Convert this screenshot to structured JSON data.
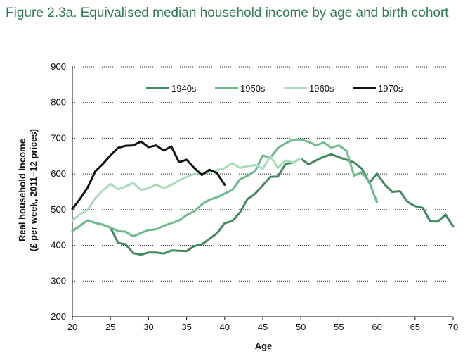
{
  "chart_data": {
    "type": "line",
    "title": "Figure 2.3a. Equivalised median household income by age and birth cohort",
    "xlabel": "Age",
    "ylabel_line1": "Real household income",
    "ylabel_line2": "(£ per week, 2011–12 prices)",
    "xlim": [
      20,
      70
    ],
    "ylim": [
      200,
      900
    ],
    "xticks": [
      20,
      25,
      30,
      35,
      40,
      45,
      50,
      55,
      60,
      65,
      70
    ],
    "yticks": [
      200,
      300,
      400,
      500,
      600,
      700,
      800,
      900
    ],
    "grid": "horizontal dotted",
    "legend_position": "top",
    "series": [
      {
        "name": "1940s",
        "color": "#3f8a5c",
        "x": [
          20,
          21,
          22,
          23,
          24,
          25,
          26,
          27,
          28,
          29,
          30,
          31,
          32,
          33,
          34,
          35,
          36,
          37,
          38,
          39,
          40,
          41,
          42,
          43,
          44,
          45,
          46,
          47,
          48,
          49,
          50,
          51,
          52,
          53,
          54,
          55,
          56,
          57,
          58,
          59,
          60,
          61,
          62,
          63,
          64,
          65,
          66,
          67,
          68,
          69,
          70
        ],
        "y": [
          440,
          455,
          470,
          463,
          458,
          450,
          407,
          403,
          378,
          374,
          380,
          380,
          377,
          386,
          385,
          384,
          398,
          403,
          418,
          434,
          462,
          468,
          492,
          530,
          545,
          568,
          592,
          593,
          628,
          632,
          643,
          627,
          638,
          648,
          655,
          647,
          640,
          632,
          615,
          575,
          601,
          571,
          550,
          552,
          522,
          510,
          505,
          467,
          467,
          486,
          453
        ]
      },
      {
        "name": "1950s",
        "color": "#6dbb8a",
        "x": [
          20,
          21,
          22,
          23,
          24,
          25,
          26,
          27,
          28,
          29,
          30,
          31,
          32,
          33,
          34,
          35,
          36,
          37,
          38,
          39,
          40,
          41,
          42,
          43,
          44,
          45,
          46,
          47,
          48,
          49,
          50,
          51,
          52,
          53,
          54,
          55,
          56,
          57,
          58,
          59,
          60
        ],
        "y": [
          440,
          455,
          470,
          463,
          458,
          450,
          440,
          438,
          425,
          435,
          443,
          445,
          455,
          462,
          470,
          485,
          495,
          515,
          528,
          535,
          545,
          555,
          585,
          595,
          608,
          652,
          645,
          673,
          686,
          696,
          697,
          690,
          680,
          688,
          674,
          680,
          665,
          595,
          605,
          577,
          520
        ]
      },
      {
        "name": "1960s",
        "color": "#a9dcb9",
        "x": [
          20,
          21,
          22,
          23,
          24,
          25,
          26,
          27,
          28,
          29,
          30,
          31,
          32,
          33,
          34,
          35,
          36,
          37,
          38,
          39,
          40,
          41,
          42,
          43,
          44,
          45,
          46,
          47,
          48,
          49,
          50
        ],
        "y": [
          470,
          487,
          500,
          532,
          554,
          572,
          557,
          565,
          575,
          555,
          560,
          570,
          560,
          570,
          582,
          592,
          600,
          600,
          605,
          610,
          617,
          630,
          617,
          622,
          625,
          615,
          650,
          617,
          638,
          632,
          642
        ]
      },
      {
        "name": "1970s",
        "color": "#111111",
        "x": [
          20,
          21,
          22,
          23,
          24,
          25,
          26,
          27,
          28,
          29,
          30,
          31,
          32,
          33,
          34,
          35,
          36,
          37,
          38,
          39,
          40
        ],
        "y": [
          502,
          530,
          562,
          607,
          628,
          652,
          673,
          679,
          680,
          691,
          675,
          680,
          666,
          677,
          633,
          640,
          617,
          597,
          612,
          602,
          570
        ]
      }
    ]
  }
}
